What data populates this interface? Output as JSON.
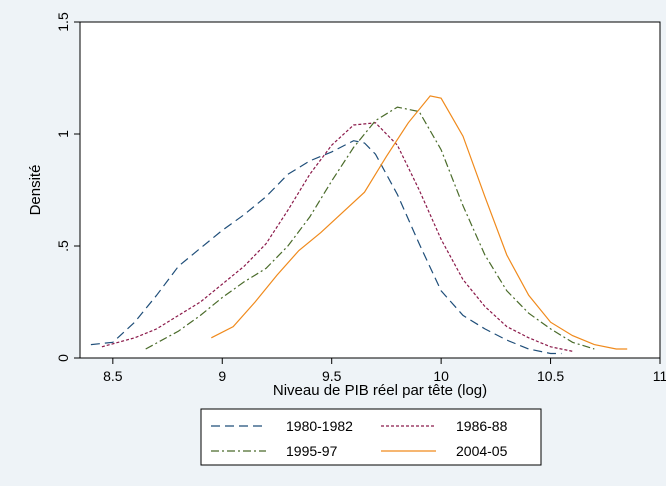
{
  "chart_data": {
    "type": "line",
    "title": "",
    "xlabel": "Niveau de PIB réel par tête (log)",
    "ylabel": "Densité",
    "xlim": [
      8.35,
      11.0
    ],
    "ylim": [
      0,
      1.5
    ],
    "xticks": [
      "8.5",
      "9",
      "9.5",
      "10",
      "10.5",
      "11"
    ],
    "yticks": [
      "0",
      ".5",
      "1",
      "1.5"
    ],
    "grid": false,
    "legend_position": "bottom",
    "colors": {
      "background_outer": "#eef3f7",
      "plot_background": "#ffffff"
    },
    "series": [
      {
        "name": "1980-1982",
        "color": "#1f4e79",
        "dash": "long-dash",
        "points": [
          [
            8.4,
            0.06
          ],
          [
            8.5,
            0.07
          ],
          [
            8.6,
            0.16
          ],
          [
            8.7,
            0.28
          ],
          [
            8.8,
            0.41
          ],
          [
            8.9,
            0.49
          ],
          [
            9.0,
            0.57
          ],
          [
            9.1,
            0.64
          ],
          [
            9.2,
            0.72
          ],
          [
            9.3,
            0.82
          ],
          [
            9.4,
            0.88
          ],
          [
            9.5,
            0.92
          ],
          [
            9.6,
            0.97
          ],
          [
            9.65,
            0.96
          ],
          [
            9.7,
            0.91
          ],
          [
            9.8,
            0.73
          ],
          [
            9.9,
            0.51
          ],
          [
            10.0,
            0.3
          ],
          [
            10.1,
            0.19
          ],
          [
            10.2,
            0.13
          ],
          [
            10.3,
            0.08
          ],
          [
            10.4,
            0.04
          ],
          [
            10.5,
            0.02
          ],
          [
            10.55,
            0.02
          ]
        ]
      },
      {
        "name": "1986-88",
        "color": "#8b1a4a",
        "dash": "short-dash",
        "points": [
          [
            8.45,
            0.05
          ],
          [
            8.6,
            0.09
          ],
          [
            8.7,
            0.13
          ],
          [
            8.8,
            0.19
          ],
          [
            8.9,
            0.25
          ],
          [
            9.0,
            0.33
          ],
          [
            9.1,
            0.41
          ],
          [
            9.2,
            0.51
          ],
          [
            9.3,
            0.66
          ],
          [
            9.4,
            0.82
          ],
          [
            9.5,
            0.95
          ],
          [
            9.6,
            1.04
          ],
          [
            9.7,
            1.05
          ],
          [
            9.8,
            0.95
          ],
          [
            9.9,
            0.75
          ],
          [
            10.0,
            0.53
          ],
          [
            10.1,
            0.35
          ],
          [
            10.2,
            0.23
          ],
          [
            10.3,
            0.14
          ],
          [
            10.4,
            0.09
          ],
          [
            10.5,
            0.05
          ],
          [
            10.6,
            0.03
          ]
        ]
      },
      {
        "name": "1995-97",
        "color": "#4a6b2a",
        "dash": "dash-dot",
        "points": [
          [
            8.65,
            0.04
          ],
          [
            8.8,
            0.12
          ],
          [
            8.9,
            0.19
          ],
          [
            9.0,
            0.27
          ],
          [
            9.1,
            0.34
          ],
          [
            9.2,
            0.4
          ],
          [
            9.3,
            0.5
          ],
          [
            9.4,
            0.63
          ],
          [
            9.5,
            0.79
          ],
          [
            9.6,
            0.94
          ],
          [
            9.7,
            1.06
          ],
          [
            9.8,
            1.12
          ],
          [
            9.9,
            1.1
          ],
          [
            10.0,
            0.93
          ],
          [
            10.1,
            0.68
          ],
          [
            10.2,
            0.46
          ],
          [
            10.3,
            0.3
          ],
          [
            10.4,
            0.2
          ],
          [
            10.5,
            0.13
          ],
          [
            10.6,
            0.07
          ],
          [
            10.7,
            0.04
          ]
        ]
      },
      {
        "name": "2004-05",
        "color": "#f08a1c",
        "dash": "solid",
        "points": [
          [
            8.95,
            0.09
          ],
          [
            9.05,
            0.14
          ],
          [
            9.15,
            0.25
          ],
          [
            9.25,
            0.37
          ],
          [
            9.35,
            0.48
          ],
          [
            9.45,
            0.56
          ],
          [
            9.55,
            0.65
          ],
          [
            9.65,
            0.74
          ],
          [
            9.75,
            0.9
          ],
          [
            9.85,
            1.05
          ],
          [
            9.95,
            1.17
          ],
          [
            10.0,
            1.16
          ],
          [
            10.1,
            0.99
          ],
          [
            10.2,
            0.72
          ],
          [
            10.3,
            0.46
          ],
          [
            10.4,
            0.28
          ],
          [
            10.5,
            0.16
          ],
          [
            10.6,
            0.1
          ],
          [
            10.7,
            0.06
          ],
          [
            10.8,
            0.04
          ],
          [
            10.85,
            0.04
          ]
        ]
      }
    ]
  }
}
